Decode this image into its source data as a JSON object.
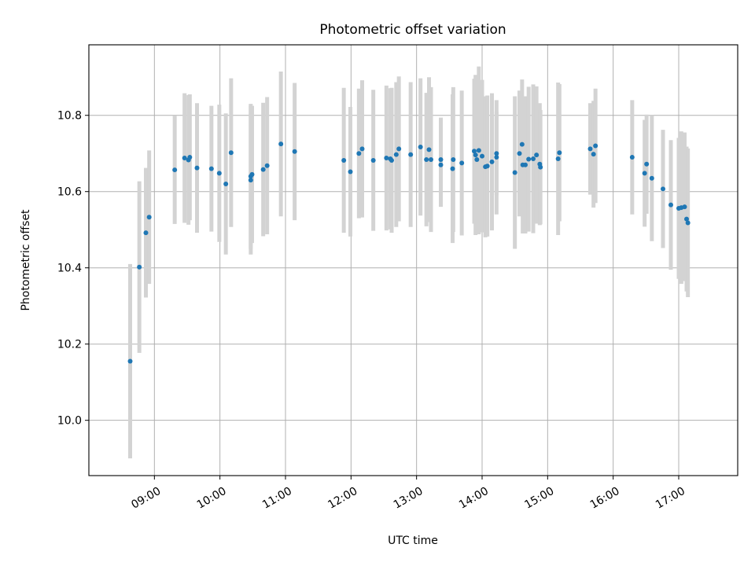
{
  "chart_data": {
    "type": "scatter",
    "title": "Photometric offset variation",
    "xlabel": "UTC time",
    "ylabel": "Photometric offset",
    "x_unit": "hours (UTC, decimal)",
    "xlim": [
      8.0,
      17.9
    ],
    "ylim": [
      9.855,
      10.985
    ],
    "x_ticks": [
      9,
      10,
      11,
      12,
      13,
      14,
      15,
      16,
      17
    ],
    "x_tick_labels": [
      "09:00",
      "10:00",
      "11:00",
      "12:00",
      "13:00",
      "14:00",
      "15:00",
      "16:00",
      "17:00"
    ],
    "y_ticks": [
      10.0,
      10.2,
      10.4,
      10.6,
      10.8
    ],
    "y_tick_labels": [
      "10.0",
      "10.2",
      "10.4",
      "10.6",
      "10.8"
    ],
    "grid": true,
    "colors": {
      "point": "#1f77b4",
      "errorbar": "#d3d3d3",
      "grid": "#b0b0b0"
    },
    "series": [
      {
        "x": [
          8.63,
          8.77,
          8.87,
          8.92,
          9.31,
          9.46,
          9.52,
          9.54,
          9.65,
          9.87,
          9.99,
          10.09,
          10.17,
          10.47,
          10.47,
          10.49,
          10.66,
          10.72,
          10.93,
          11.14,
          11.89,
          11.99,
          12.12,
          12.17,
          12.34,
          12.54,
          12.6,
          12.62,
          12.69,
          12.73,
          12.91,
          13.06,
          13.15,
          13.19,
          13.22,
          13.37,
          13.37,
          13.55,
          13.56,
          13.69,
          13.88,
          13.92,
          13.9,
          13.95,
          14.0,
          14.05,
          14.08,
          14.15,
          14.22,
          14.22,
          14.5,
          14.57,
          14.61,
          14.62,
          14.66,
          14.71,
          14.78,
          14.83,
          14.88,
          14.89,
          15.16,
          15.18,
          15.65,
          15.7,
          15.73,
          16.29,
          16.48,
          16.51,
          16.59,
          16.76,
          16.88,
          17.0,
          17.04,
          17.09,
          17.12,
          17.14
        ],
        "y": [
          10.155,
          10.402,
          10.492,
          10.533,
          10.657,
          10.688,
          10.683,
          10.69,
          10.662,
          10.66,
          10.648,
          10.62,
          10.702,
          10.63,
          10.64,
          10.645,
          10.658,
          10.668,
          10.725,
          10.705,
          10.682,
          10.652,
          10.7,
          10.712,
          10.682,
          10.688,
          10.686,
          10.682,
          10.697,
          10.712,
          10.697,
          10.717,
          10.684,
          10.71,
          10.684,
          10.67,
          10.684,
          10.66,
          10.684,
          10.675,
          10.706,
          10.684,
          10.696,
          10.708,
          10.693,
          10.665,
          10.667,
          10.678,
          10.69,
          10.7,
          10.65,
          10.7,
          10.724,
          10.67,
          10.67,
          10.685,
          10.686,
          10.696,
          10.672,
          10.664,
          10.686,
          10.702,
          10.712,
          10.698,
          10.72,
          10.69,
          10.648,
          10.672,
          10.635,
          10.607,
          10.565,
          10.556,
          10.558,
          10.56,
          10.528,
          10.518
        ],
        "err": [
          0.255,
          0.225,
          0.17,
          0.175,
          0.142,
          0.17,
          0.17,
          0.165,
          0.17,
          0.165,
          0.18,
          0.185,
          0.195,
          0.195,
          0.19,
          0.18,
          0.175,
          0.18,
          0.19,
          0.18,
          0.19,
          0.17,
          0.17,
          0.18,
          0.185,
          0.19,
          0.185,
          0.19,
          0.19,
          0.19,
          0.19,
          0.18,
          0.175,
          0.19,
          0.19,
          0.11,
          0.11,
          0.195,
          0.19,
          0.19,
          0.19,
          0.15,
          0.21,
          0.22,
          0.2,
          0.185,
          0.185,
          0.18,
          0.15,
          0.11,
          0.2,
          0.165,
          0.17,
          0.18,
          0.18,
          0.19,
          0.195,
          0.18,
          0.16,
          0.15,
          0.2,
          0.18,
          0.12,
          0.14,
          0.15,
          0.15,
          0.14,
          0.13,
          0.165,
          0.155,
          0.17,
          0.185,
          0.2,
          0.195,
          0.19,
          0.195
        ]
      }
    ]
  }
}
